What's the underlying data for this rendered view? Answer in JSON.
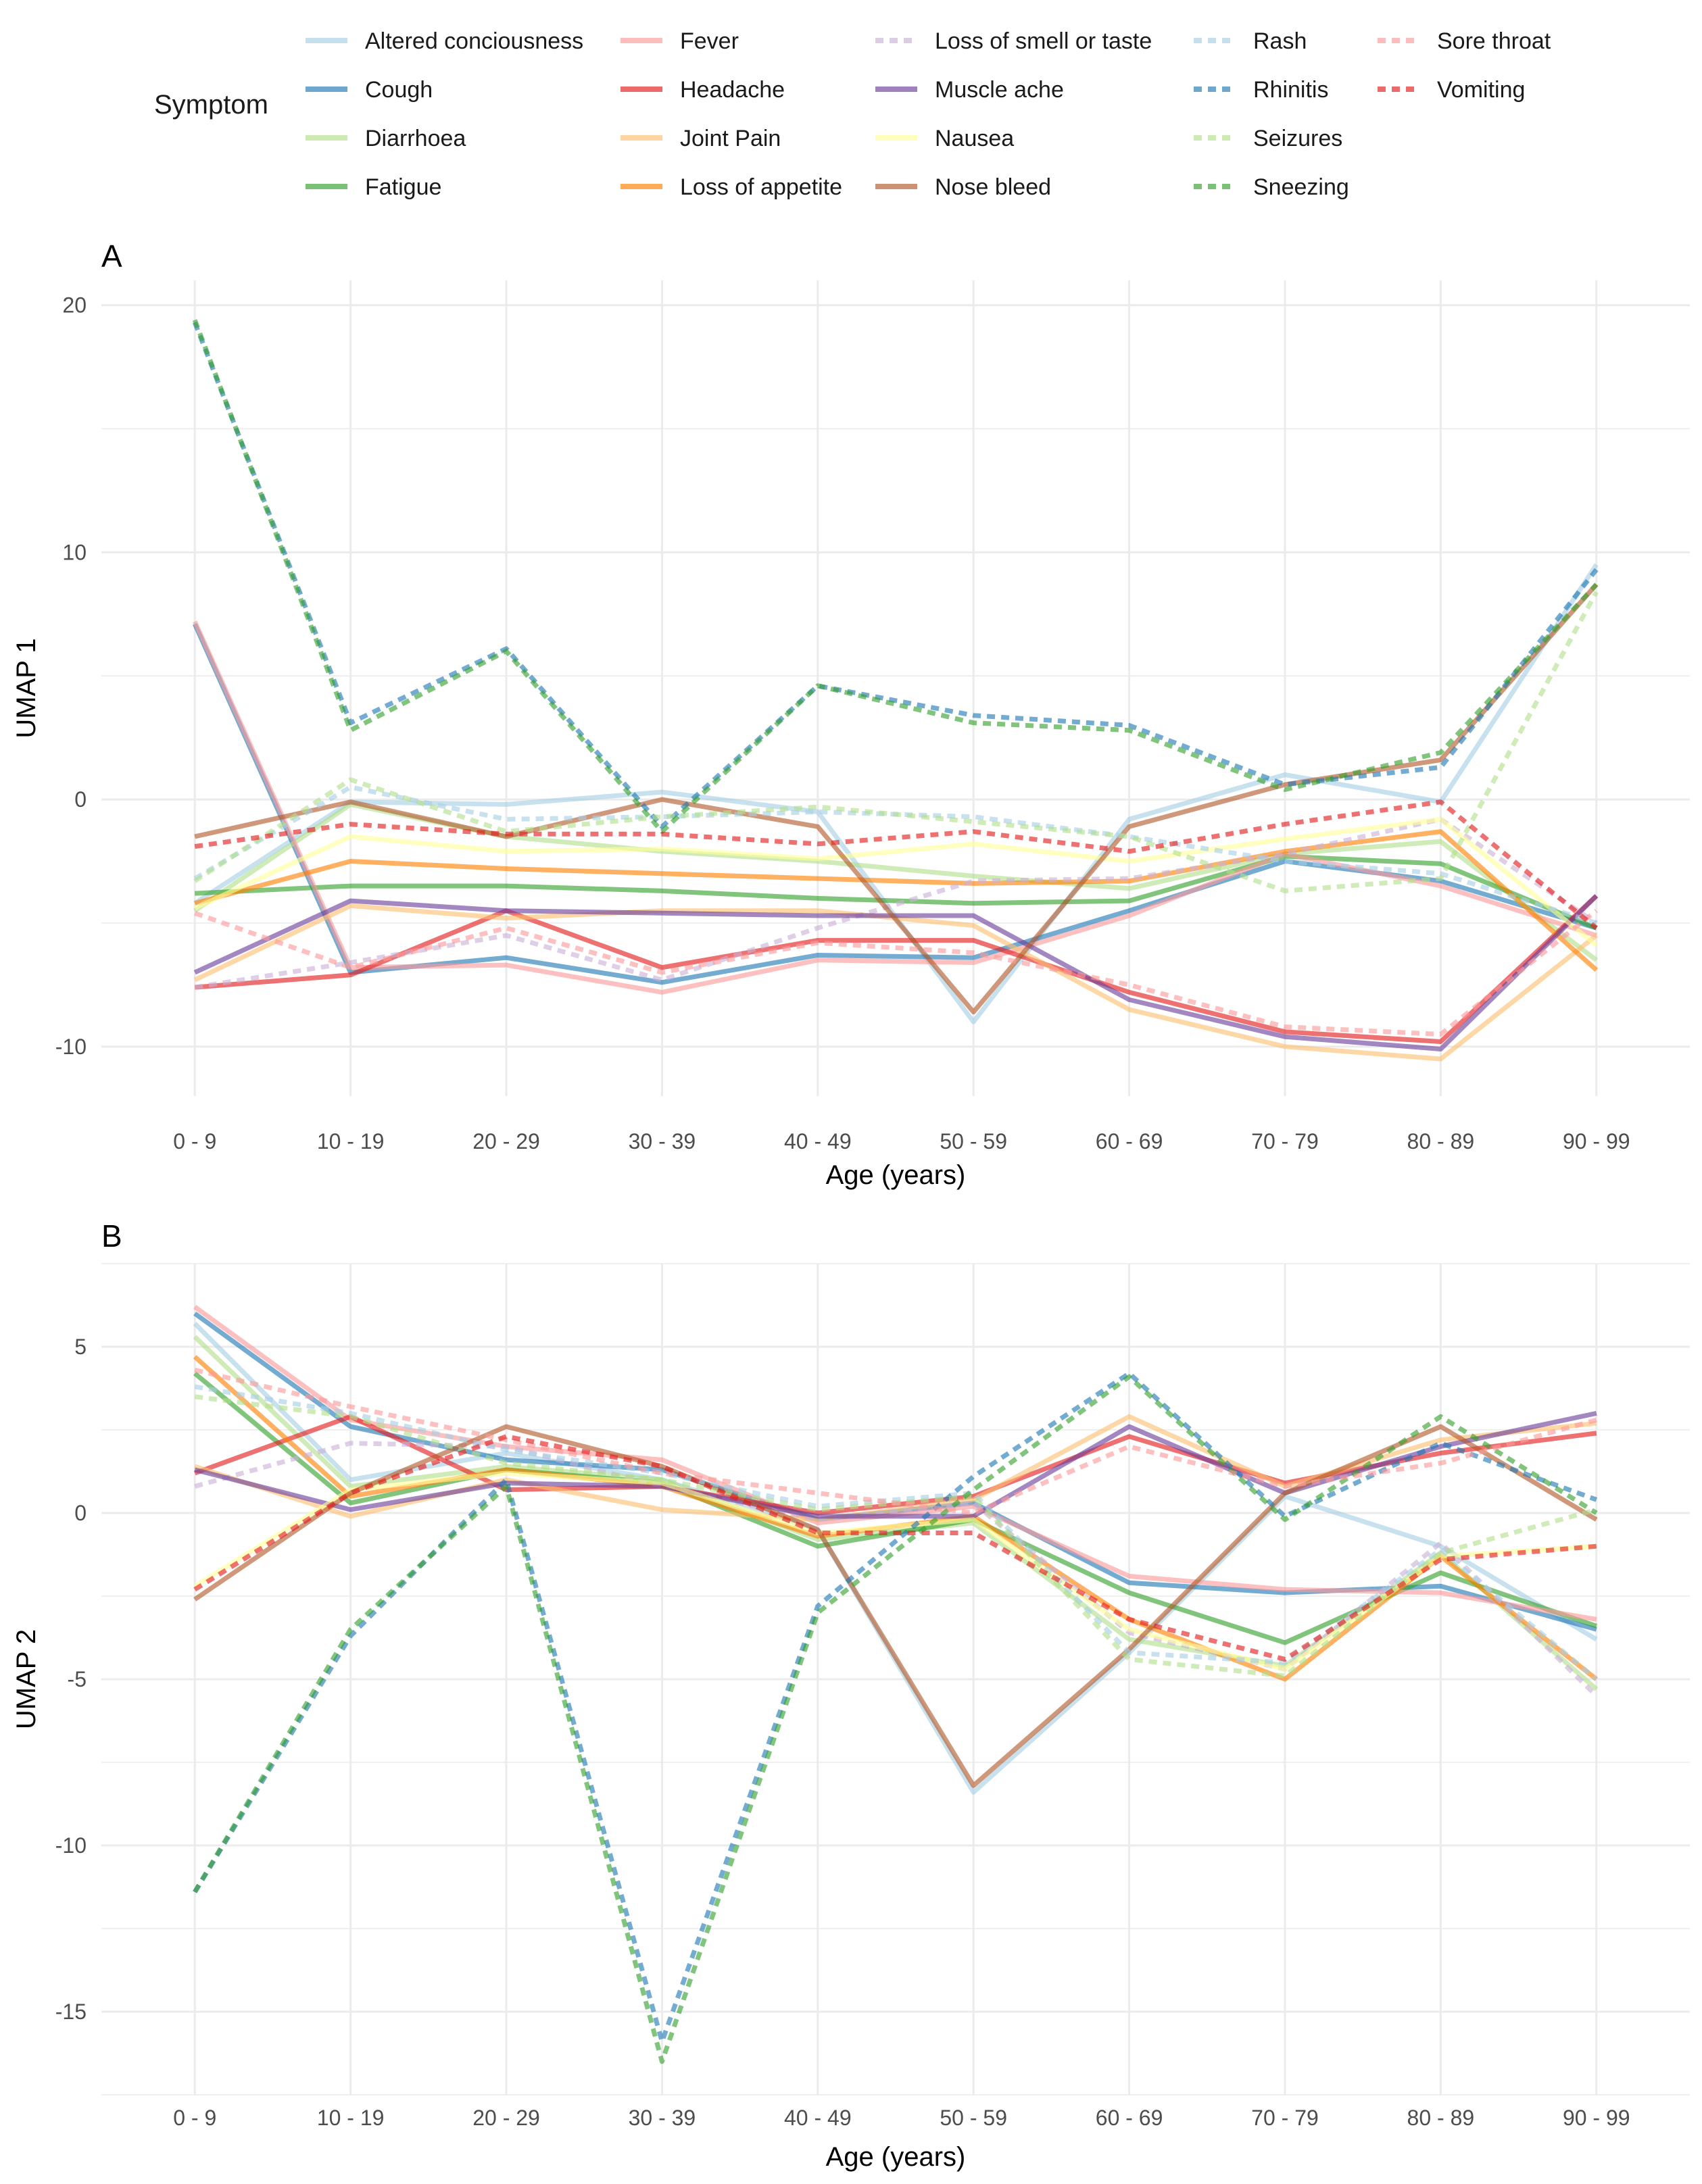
{
  "legend": {
    "title": "Symptom"
  },
  "panels": [
    {
      "tag": "A",
      "ylabel": "UMAP 1",
      "xlabel": "Age (years)"
    },
    {
      "tag": "B",
      "ylabel": "UMAP 2",
      "xlabel": "Age (years)"
    }
  ],
  "chart_data": [
    {
      "type": "line",
      "title": "A",
      "xlabel": "Age (years)",
      "ylabel": "UMAP 1",
      "ylim": [
        -12,
        21
      ],
      "yticks": [
        -10,
        0,
        10,
        20
      ],
      "grid": true,
      "legend_position": "top",
      "categories": [
        "0 - 9",
        "10 - 19",
        "20 - 29",
        "30 - 39",
        "40 - 49",
        "50 - 59",
        "60 - 69",
        "70 - 79",
        "80 - 89",
        "90 - 99"
      ],
      "series": [
        {
          "name": "Altered conciousness",
          "color": "#a6cee3",
          "dash": false,
          "values": [
            -4.2,
            -0.1,
            -0.2,
            0.3,
            -0.5,
            -9,
            -0.8,
            1,
            -0.1,
            9.5
          ]
        },
        {
          "name": "Cough",
          "color": "#1f78b4",
          "dash": false,
          "values": [
            7.1,
            -7,
            -6.4,
            -7.4,
            -6.3,
            -6.4,
            -4.5,
            -2.5,
            -3.3,
            -5.2
          ]
        },
        {
          "name": "Diarrhoea",
          "color": "#b2df8a",
          "dash": false,
          "values": [
            -4.5,
            -0.2,
            -1.5,
            -2.1,
            -2.5,
            -3.1,
            -3.6,
            -2.2,
            -1.7,
            -6.5
          ]
        },
        {
          "name": "Fatigue",
          "color": "#33a02c",
          "dash": false,
          "values": [
            -3.8,
            -3.5,
            -3.5,
            -3.7,
            -4,
            -4.2,
            -4.1,
            -2.3,
            -2.6,
            -5.2
          ]
        },
        {
          "name": "Fever",
          "color": "#fb9a99",
          "dash": false,
          "values": [
            7.2,
            -6.8,
            -6.7,
            -7.8,
            -6.5,
            -6.6,
            -4.7,
            -2.2,
            -3.5,
            -5.5
          ]
        },
        {
          "name": "Headache",
          "color": "#e31a1c",
          "dash": false,
          "values": [
            -7.6,
            -7.1,
            -4.5,
            -6.8,
            -5.7,
            -5.7,
            -7.8,
            -9.4,
            -9.8,
            -3.9
          ]
        },
        {
          "name": "Joint Pain",
          "color": "#fdbf6f",
          "dash": false,
          "values": [
            -7.3,
            -4.3,
            -4.8,
            -4.5,
            -4.5,
            -5.1,
            -8.5,
            -10,
            -10.5,
            -5.5
          ]
        },
        {
          "name": "Loss of appetite",
          "color": "#ff7f00",
          "dash": false,
          "values": [
            -4.2,
            -2.5,
            -2.8,
            -3,
            -3.2,
            -3.4,
            -3.3,
            -2.1,
            -1.3,
            -6.9
          ]
        },
        {
          "name": "Loss of smell or taste",
          "color": "#cab2d6",
          "dash": true,
          "values": [
            -7.6,
            -6.6,
            -5.5,
            -7.3,
            -5.2,
            -3.3,
            -3.2,
            -2.2,
            -0.8,
            -5
          ]
        },
        {
          "name": "Muscle ache",
          "color": "#6a3d9a",
          "dash": false,
          "values": [
            -7,
            -4.1,
            -4.5,
            -4.6,
            -4.7,
            -4.7,
            -8.1,
            -9.6,
            -10.1,
            -3.9
          ]
        },
        {
          "name": "Nausea",
          "color": "#ffff99",
          "dash": false,
          "values": [
            -4.4,
            -1.5,
            -2.1,
            -2,
            -2.4,
            -1.8,
            -2.5,
            -1.6,
            -0.8,
            -5.9
          ]
        },
        {
          "name": "Nose bleed",
          "color": "#b15928",
          "dash": false,
          "values": [
            -1.5,
            -0.1,
            -1.5,
            0,
            -1.1,
            -8.6,
            -1.1,
            0.6,
            1.6,
            8.7
          ]
        },
        {
          "name": "Rash",
          "color": "#a6cee3",
          "dash": true,
          "values": [
            -3.2,
            0.5,
            -0.8,
            -0.7,
            -0.5,
            -0.7,
            -1.5,
            -2.5,
            -3,
            -5
          ]
        },
        {
          "name": "Rhinitis",
          "color": "#1f78b4",
          "dash": true,
          "values": [
            19.3,
            3.1,
            6.1,
            -1.1,
            4.6,
            3.4,
            3,
            0.6,
            1.3,
            9.3
          ]
        },
        {
          "name": "Seizures",
          "color": "#b2df8a",
          "dash": true,
          "values": [
            -3.3,
            0.8,
            -1.3,
            -0.7,
            -0.3,
            -0.9,
            -1.5,
            -3.7,
            -3.2,
            8.4
          ]
        },
        {
          "name": "Sneezing",
          "color": "#33a02c",
          "dash": true,
          "values": [
            19.4,
            2.8,
            6,
            -1.3,
            4.6,
            3.1,
            2.8,
            0.4,
            1.9,
            8.7
          ]
        },
        {
          "name": "Sore throat",
          "color": "#fb9a99",
          "dash": true,
          "values": [
            -4.6,
            -6.8,
            -5.2,
            -7,
            -5.8,
            -6.2,
            -7.5,
            -9.2,
            -9.5,
            -4.5
          ]
        },
        {
          "name": "Vomiting",
          "color": "#e31a1c",
          "dash": true,
          "values": [
            -1.9,
            -1,
            -1.4,
            -1.4,
            -1.8,
            -1.3,
            -2.1,
            -1,
            -0.1,
            -5.2
          ]
        }
      ]
    },
    {
      "type": "line",
      "title": "B",
      "xlabel": "Age (years)",
      "ylabel": "UMAP 2",
      "ylim": [
        -17.5,
        7.5
      ],
      "yticks": [
        -15,
        -10,
        -5,
        0,
        5
      ],
      "grid": true,
      "categories": [
        "0 - 9",
        "10 - 19",
        "20 - 29",
        "30 - 39",
        "40 - 49",
        "50 - 59",
        "60 - 69",
        "70 - 79",
        "80 - 89",
        "90 - 99"
      ],
      "series": [
        {
          "name": "Altered conciousness",
          "color": "#a6cee3",
          "dash": false,
          "values": [
            5.7,
            1,
            1.8,
            1,
            -0.5,
            -8.4,
            -4.2,
            0.5,
            -1,
            -3.8
          ]
        },
        {
          "name": "Cough",
          "color": "#1f78b4",
          "dash": false,
          "values": [
            6,
            2.6,
            1.6,
            1.3,
            -0.2,
            0.3,
            -2.1,
            -2.4,
            -2.2,
            -3.5
          ]
        },
        {
          "name": "Diarrhoea",
          "color": "#b2df8a",
          "dash": false,
          "values": [
            5.3,
            0.8,
            1.4,
            1,
            -0.8,
            -0.3,
            -3.8,
            -4.6,
            -1.2,
            -5.3
          ]
        },
        {
          "name": "Fatigue",
          "color": "#33a02c",
          "dash": false,
          "values": [
            4.2,
            0.3,
            1.3,
            0.9,
            -1,
            -0.2,
            -2.4,
            -3.9,
            -1.8,
            -3.4
          ]
        },
        {
          "name": "Fever",
          "color": "#fb9a99",
          "dash": false,
          "values": [
            6.2,
            2.8,
            2,
            1.6,
            -0.3,
            0.2,
            -1.9,
            -2.3,
            -2.4,
            -3.2
          ]
        },
        {
          "name": "Headache",
          "color": "#e31a1c",
          "dash": false,
          "values": [
            1.2,
            2.9,
            0.7,
            0.8,
            0,
            0.5,
            2.3,
            0.9,
            1.8,
            2.4
          ]
        },
        {
          "name": "Joint Pain",
          "color": "#fdbf6f",
          "dash": false,
          "values": [
            1.4,
            -0.1,
            1,
            0.1,
            -0.2,
            0.4,
            2.9,
            0.8,
            2.2,
            2.7
          ]
        },
        {
          "name": "Loss of appetite",
          "color": "#ff7f00",
          "dash": false,
          "values": [
            4.7,
            0.5,
            1.3,
            0.8,
            -0.7,
            -0.1,
            -3.2,
            -5,
            -1.3,
            -5
          ]
        },
        {
          "name": "Loss of smell or taste",
          "color": "#cab2d6",
          "dash": true,
          "values": [
            0.8,
            2.1,
            2,
            0.8,
            -0.2,
            0.3,
            -3.6,
            -4.7,
            -0.9,
            -5.5
          ]
        },
        {
          "name": "Muscle ache",
          "color": "#6a3d9a",
          "dash": false,
          "values": [
            1.3,
            0.1,
            0.9,
            0.8,
            -0.1,
            -0.1,
            2.6,
            0.6,
            2,
            3
          ]
        },
        {
          "name": "Nausea",
          "color": "#ffff99",
          "dash": false,
          "values": [
            -2.2,
            0.7,
            1.2,
            0.9,
            -0.6,
            -0.2,
            -3.5,
            -4.7,
            -1.3,
            -1
          ]
        },
        {
          "name": "Nose bleed",
          "color": "#b15928",
          "dash": false,
          "values": [
            -2.6,
            0.6,
            2.6,
            1.4,
            -0.5,
            -8.2,
            -4.1,
            0.6,
            2.6,
            -0.2
          ]
        },
        {
          "name": "Rash",
          "color": "#a6cee3",
          "dash": true,
          "values": [
            3.8,
            3,
            1.9,
            1.2,
            0.2,
            0.6,
            -4.2,
            -4.5,
            -1.1,
            -5
          ]
        },
        {
          "name": "Rhinitis",
          "color": "#1f78b4",
          "dash": true,
          "values": [
            -11.4,
            -3.7,
            1,
            -15.9,
            -2.8,
            1.1,
            4.2,
            -0.1,
            2.1,
            0.4
          ]
        },
        {
          "name": "Seizures",
          "color": "#b2df8a",
          "dash": true,
          "values": [
            3.5,
            2.9,
            1.5,
            1,
            0.1,
            0.5,
            -4.4,
            -4.9,
            -1.2,
            0.1
          ]
        },
        {
          "name": "Sneezing",
          "color": "#33a02c",
          "dash": true,
          "values": [
            -11.4,
            -3.5,
            0.8,
            -16.5,
            -3,
            0.7,
            4.1,
            -0.2,
            2.9,
            0
          ]
        },
        {
          "name": "Sore throat",
          "color": "#fb9a99",
          "dash": true,
          "values": [
            4.3,
            3.2,
            2.2,
            1.2,
            0.6,
            0,
            2,
            0.8,
            1.5,
            2.8
          ]
        },
        {
          "name": "Vomiting",
          "color": "#e31a1c",
          "dash": true,
          "values": [
            -2.3,
            0.6,
            2.3,
            1.4,
            -0.6,
            -0.6,
            -3.2,
            -4.4,
            -1.4,
            -1
          ]
        }
      ]
    }
  ]
}
